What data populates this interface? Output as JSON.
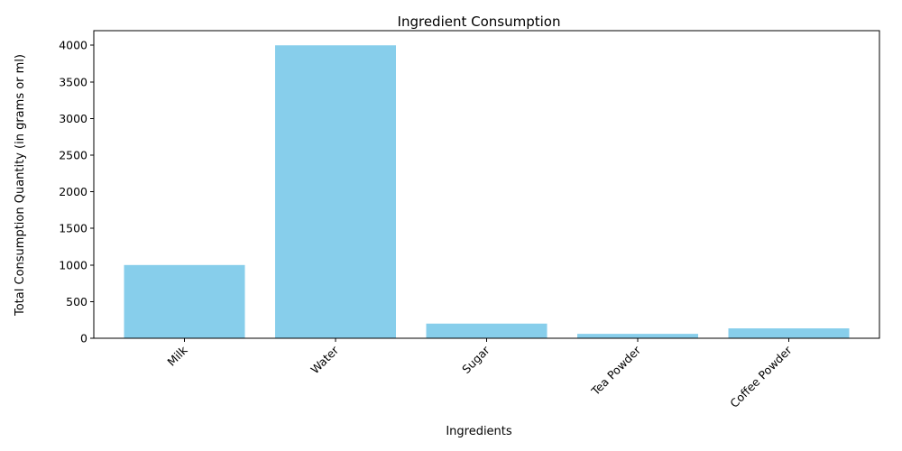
{
  "chart_data": {
    "type": "bar",
    "title": "Ingredient Consumption",
    "xlabel": "Ingredients",
    "ylabel": "Total Consumption Quantity (in grams or ml)",
    "categories": [
      "Milk",
      "Water",
      "Sugar",
      "Tea Powder",
      "Coffee Powder"
    ],
    "values": [
      1000,
      4000,
      200,
      60,
      135
    ],
    "ylim": [
      0,
      4200
    ],
    "yticks": [
      0,
      500,
      1000,
      1500,
      2000,
      2500,
      3000,
      3500,
      4000
    ],
    "bar_color": "#87CEEB",
    "grid": false,
    "legend": "none"
  }
}
